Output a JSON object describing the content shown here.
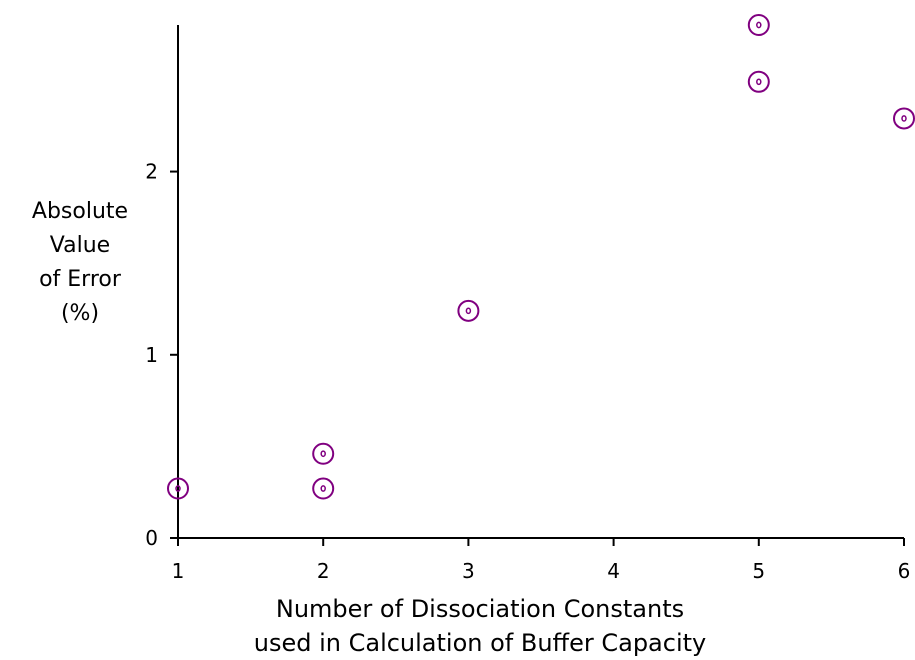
{
  "chart_data": {
    "type": "scatter",
    "title": "",
    "xlabel": [
      "Number of Dissociation Constants",
      "used in Calculation of Buffer Capacity"
    ],
    "ylabel": [
      "Absolute",
      "Value",
      "of Error",
      "(%)"
    ],
    "xlim": [
      1,
      6
    ],
    "ylim": [
      0,
      2.8
    ],
    "xticks": [
      "1",
      "2",
      "3",
      "4",
      "5",
      "6"
    ],
    "yticks": [
      "0",
      "1",
      "2"
    ],
    "grid": false,
    "marker_color": "#800080",
    "series": [
      {
        "x": [
          1,
          2,
          2,
          3,
          5,
          5,
          6
        ],
        "y": [
          0.27,
          0.27,
          0.46,
          1.24,
          2.49,
          2.8,
          2.29
        ]
      }
    ]
  }
}
